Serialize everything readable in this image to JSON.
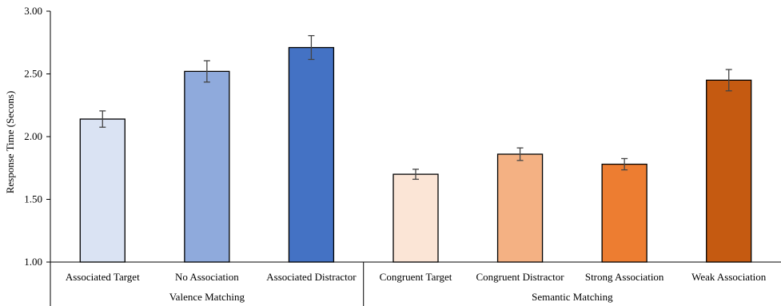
{
  "chart_data": {
    "type": "bar",
    "title": "",
    "xlabel": "",
    "ylabel": "Response Time (Secons)",
    "ylim": [
      1.0,
      3.0
    ],
    "yticks": [
      "1.00",
      "1.50",
      "2.00",
      "2.50",
      "3.00"
    ],
    "ytick_values": [
      1.0,
      1.5,
      2.0,
      2.5,
      3.0
    ],
    "grid": false,
    "legend": "none",
    "groups": [
      {
        "label": "Valence Matching",
        "start": 0,
        "end": 2
      },
      {
        "label": "Semantic Matching",
        "start": 3,
        "end": 6
      }
    ],
    "categories": [
      "Associated Target",
      "No Association",
      "Associated Distractor",
      "Congruent Target",
      "Congruent Distractor",
      "Strong Association",
      "Weak Association"
    ],
    "values": [
      2.14,
      2.52,
      2.71,
      1.7,
      1.86,
      1.78,
      2.45
    ],
    "errors": [
      0.065,
      0.085,
      0.095,
      0.04,
      0.05,
      0.045,
      0.085
    ],
    "colors": [
      "#dae3f3",
      "#8faadc",
      "#4472c4",
      "#fbe5d6",
      "#f4b183",
      "#ed7d31",
      "#c55a11"
    ]
  }
}
